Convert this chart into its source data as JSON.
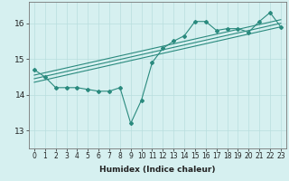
{
  "xlabel": "Humidex (Indice chaleur)",
  "ylabel": "",
  "bg_color": "#d6f0f0",
  "line_color": "#2a8a7e",
  "grid_color": "#b8dede",
  "xlim": [
    -0.5,
    23.5
  ],
  "ylim": [
    12.5,
    16.6
  ],
  "yticks": [
    13,
    14,
    15,
    16
  ],
  "xticks": [
    0,
    1,
    2,
    3,
    4,
    5,
    6,
    7,
    8,
    9,
    10,
    11,
    12,
    13,
    14,
    15,
    16,
    17,
    18,
    19,
    20,
    21,
    22,
    23
  ],
  "line1_x": [
    0,
    1,
    2,
    3,
    4,
    5,
    6,
    7,
    8,
    9,
    10,
    11,
    12,
    13,
    14,
    15,
    16,
    17,
    18,
    19,
    20,
    21,
    22,
    23
  ],
  "line1_y": [
    14.7,
    14.5,
    14.2,
    14.2,
    14.2,
    14.15,
    14.1,
    14.1,
    14.2,
    13.2,
    13.85,
    14.9,
    15.3,
    15.5,
    15.65,
    16.05,
    16.05,
    15.8,
    15.85,
    15.85,
    15.75,
    16.05,
    16.3,
    15.9
  ],
  "line2_x": [
    0,
    23
  ],
  "line2_y": [
    14.35,
    15.9
  ],
  "line3_x": [
    0,
    23
  ],
  "line3_y": [
    14.45,
    16.0
  ],
  "line4_x": [
    0,
    23
  ],
  "line4_y": [
    14.55,
    16.1
  ],
  "tick_fontsize": 5.5,
  "xlabel_fontsize": 6.5
}
